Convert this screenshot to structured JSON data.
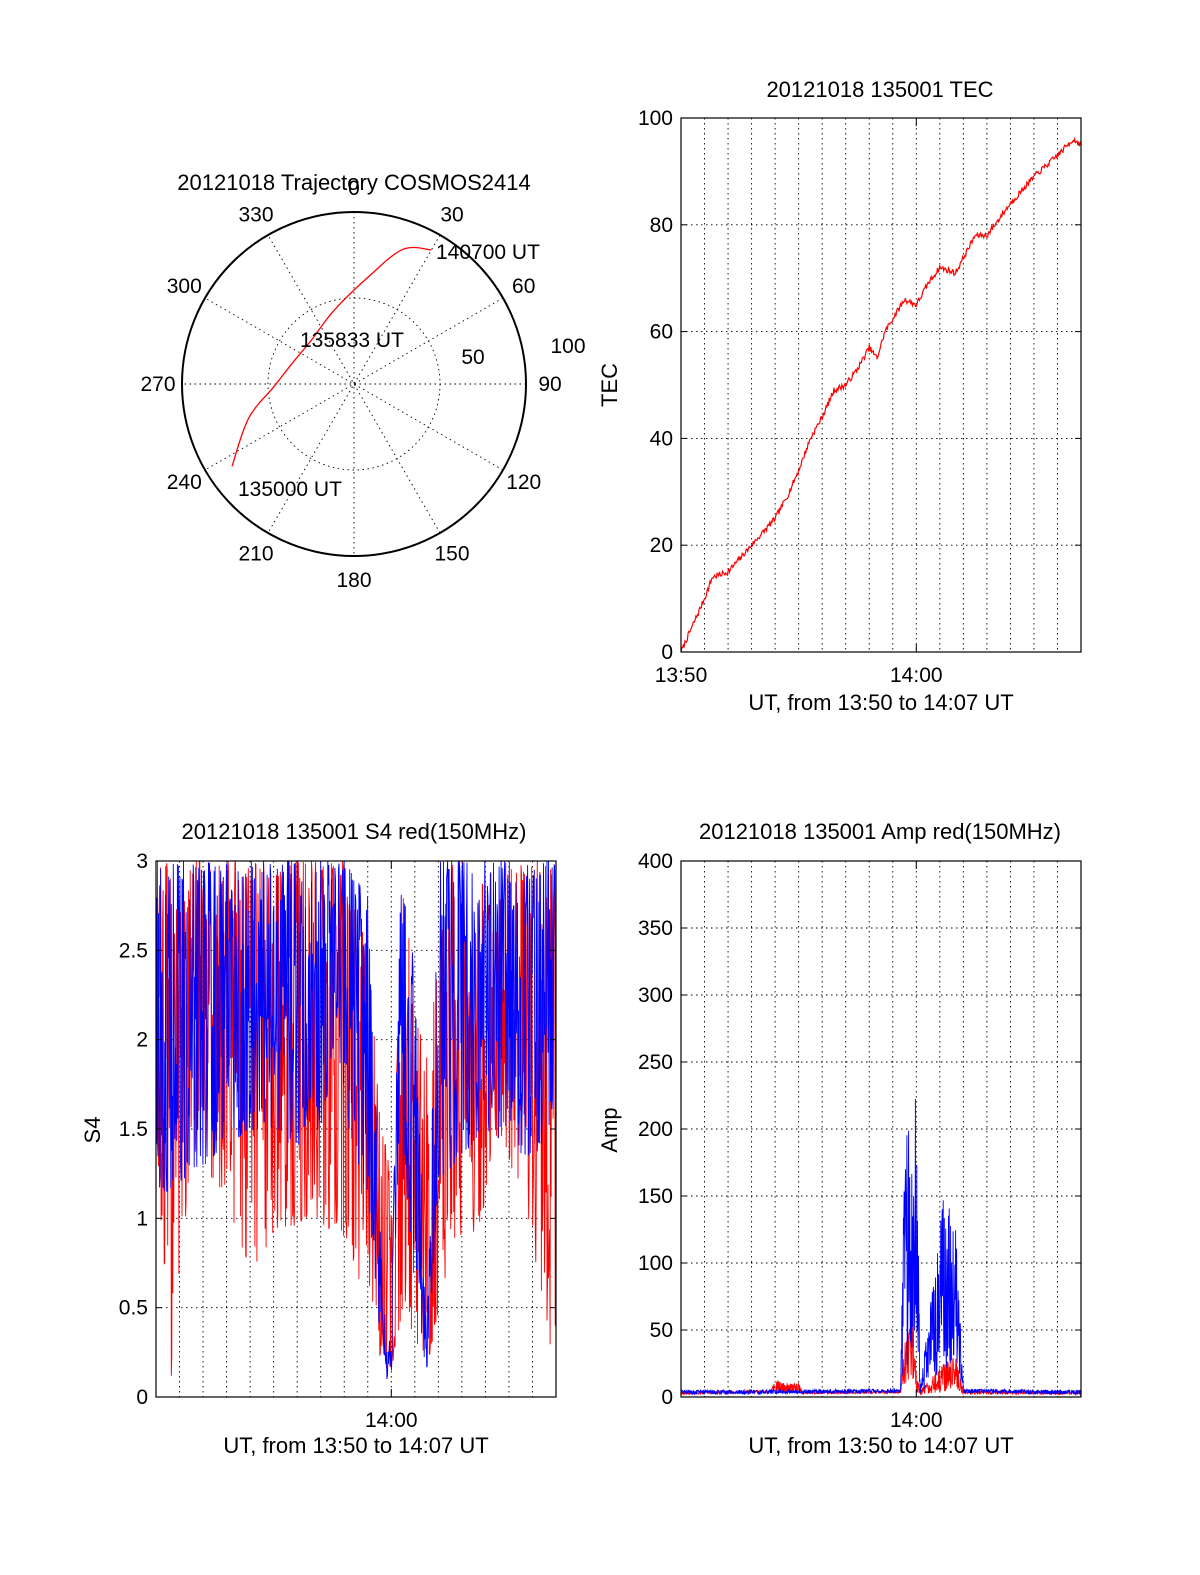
{
  "figure": {
    "background": "#ffffff",
    "series_colors": {
      "red": "#ff0000",
      "blue": "#0000ff"
    }
  },
  "chart_data": [
    {
      "id": "trajectory",
      "type": "polar",
      "title": "20121018 Trajectory COSMOS2414",
      "azimuth_ticks": [
        "0",
        "30",
        "60",
        "90",
        "120",
        "150",
        "180",
        "210",
        "240",
        "270",
        "300",
        "330"
      ],
      "radial_ticks": [
        "50",
        "100"
      ],
      "track": [
        {
          "az": 236,
          "el": 13
        },
        {
          "az": 252,
          "el": 32
        },
        {
          "az": 268,
          "el": 48
        },
        {
          "az": 289,
          "el": 56
        },
        {
          "az": 316,
          "el": 58
        },
        {
          "az": 345,
          "el": 50
        },
        {
          "az": 8,
          "el": 33
        },
        {
          "az": 20,
          "el": 15
        },
        {
          "az": 30,
          "el": 9
        }
      ],
      "annotations": [
        {
          "text": "140700 UT",
          "az": 30,
          "el": 9
        },
        {
          "text": "135833 UT",
          "az": 300,
          "el": 60
        },
        {
          "text": "135000 UT",
          "az": 236,
          "el": 13
        }
      ],
      "color": "#ff0000"
    },
    {
      "id": "tec",
      "type": "line",
      "title": "20121018 135001 TEC",
      "xlabel": "UT, from 13:50 to 14:07 UT",
      "ylabel": "TEC",
      "xlim": [
        "13:50",
        "14:07"
      ],
      "ylim": [
        0,
        100
      ],
      "x_tick_labels": [
        "13:50",
        "14:00"
      ],
      "y_tick_labels": [
        "0",
        "20",
        "40",
        "60",
        "80",
        "100"
      ],
      "grid": true,
      "series": [
        {
          "color": "#ff0000",
          "points": [
            [
              "13:50:00",
              0
            ],
            [
              "13:50:30",
              5
            ],
            [
              "13:51:00",
              10
            ],
            [
              "13:51:20",
              14
            ],
            [
              "13:52:00",
              15
            ],
            [
              "13:53:00",
              20
            ],
            [
              "13:54:00",
              25
            ],
            [
              "13:54:30",
              29
            ],
            [
              "13:55:00",
              34
            ],
            [
              "13:55:30",
              40
            ],
            [
              "13:56:00",
              44
            ],
            [
              "13:56:30",
              49
            ],
            [
              "13:57:00",
              50
            ],
            [
              "13:57:30",
              53
            ],
            [
              "13:58:00",
              57
            ],
            [
              "13:58:20",
              55
            ],
            [
              "13:58:40",
              60
            ],
            [
              "13:59:30",
              66
            ],
            [
              "14:00:00",
              65
            ],
            [
              "14:00:30",
              69
            ],
            [
              "14:01:00",
              72
            ],
            [
              "14:01:40",
              71
            ],
            [
              "14:02:30",
              78
            ],
            [
              "14:03:00",
              78
            ],
            [
              "14:04:00",
              84
            ],
            [
              "14:05:00",
              89
            ],
            [
              "14:06:00",
              93
            ],
            [
              "14:06:40",
              96
            ],
            [
              "14:07:00",
              95
            ]
          ]
        }
      ]
    },
    {
      "id": "s4",
      "type": "line",
      "title": "20121018 135001 S4 red(150MHz)",
      "xlabel": "UT, from 13:50 to 14:07 UT",
      "ylabel": "S4",
      "xlim": [
        "13:50",
        "14:07"
      ],
      "ylim": [
        0,
        3
      ],
      "x_tick_labels": [
        "14:00"
      ],
      "y_tick_labels": [
        "0",
        "0.5",
        "1",
        "1.5",
        "2",
        "2.5",
        "3"
      ],
      "grid": true,
      "series": [
        {
          "color": "#ff0000",
          "envelope": [
            [
              "13:50:00",
              1.4,
              3.0
            ],
            [
              "13:50:40",
              0.0,
              3.0
            ],
            [
              "13:51:30",
              1.4,
              3.0
            ],
            [
              "13:53:00",
              1.1,
              3.0
            ],
            [
              "13:54:00",
              0.7,
              3.0
            ],
            [
              "13:55:00",
              0.9,
              3.0
            ],
            [
              "13:56:30",
              1.0,
              3.0
            ],
            [
              "13:58:00",
              0.9,
              3.0
            ],
            [
              "13:59:00",
              0.5,
              2.5
            ],
            [
              "13:59:40",
              0.15,
              1.5
            ],
            [
              "14:00:00",
              0.15,
              1.2
            ],
            [
              "14:00:30",
              0.5,
              2.8
            ],
            [
              "14:01:30",
              0.15,
              1.9
            ],
            [
              "14:02:30",
              0.8,
              3.0
            ],
            [
              "14:03:30",
              0.8,
              3.0
            ],
            [
              "14:04:30",
              1.4,
              3.0
            ],
            [
              "14:05:30",
              1.2,
              3.0
            ],
            [
              "14:06:30",
              0.5,
              3.0
            ],
            [
              "14:07:00",
              0.0,
              3.0
            ]
          ]
        },
        {
          "color": "#0000ff",
          "envelope": [
            [
              "13:50:00",
              1.1,
              3.0
            ],
            [
              "13:52:00",
              1.3,
              3.0
            ],
            [
              "13:54:00",
              1.5,
              3.0
            ],
            [
              "13:56:00",
              1.4,
              3.0
            ],
            [
              "13:58:00",
              1.6,
              3.0
            ],
            [
              "13:59:00",
              1.1,
              2.8
            ],
            [
              "13:59:40",
              0.1,
              0.5
            ],
            [
              "14:00:00",
              0.1,
              0.3
            ],
            [
              "14:00:20",
              1.4,
              3.0
            ],
            [
              "14:01:00",
              0.7,
              2.4
            ],
            [
              "14:01:30",
              0.1,
              0.3
            ],
            [
              "14:02:00",
              1.2,
              3.0
            ],
            [
              "14:04:00",
              1.5,
              3.0
            ],
            [
              "14:06:00",
              1.3,
              3.0
            ],
            [
              "14:07:00",
              1.6,
              3.0
            ]
          ]
        }
      ]
    },
    {
      "id": "amp",
      "type": "line",
      "title": "20121018 135001 Amp red(150MHz)",
      "xlabel": "UT, from 13:50 to 14:07 UT",
      "ylabel": "Amp",
      "xlim": [
        "13:50",
        "14:07"
      ],
      "ylim": [
        0,
        400
      ],
      "x_tick_labels": [
        "14:00"
      ],
      "y_tick_labels": [
        "0",
        "50",
        "100",
        "150",
        "200",
        "250",
        "300",
        "350",
        "400"
      ],
      "grid": true,
      "series": [
        {
          "color": "#ff0000",
          "envelope": [
            [
              "13:50:00",
              2,
              4
            ],
            [
              "13:53:50",
              3,
              5
            ],
            [
              "13:54:00",
              4,
              12
            ],
            [
              "13:55:00",
              3,
              10
            ],
            [
              "13:55:10",
              2,
              4
            ],
            [
              "13:59:20",
              3,
              5
            ],
            [
              "13:59:30",
              8,
              40
            ],
            [
              "13:59:50",
              15,
              60
            ],
            [
              "14:00:00",
              2,
              20
            ],
            [
              "14:00:10",
              2,
              5
            ],
            [
              "14:01:10",
              4,
              25
            ],
            [
              "14:01:40",
              8,
              30
            ],
            [
              "14:02:00",
              2,
              5
            ],
            [
              "14:07:00",
              2,
              4
            ]
          ]
        },
        {
          "color": "#0000ff",
          "envelope": [
            [
              "13:50:00",
              2,
              5
            ],
            [
              "13:59:20",
              3,
              6
            ],
            [
              "13:59:30",
              20,
              190
            ],
            [
              "13:59:50",
              30,
              210
            ],
            [
              "14:00:00",
              60,
              240
            ],
            [
              "14:00:10",
              3,
              6
            ],
            [
              "14:01:10",
              20,
              150
            ],
            [
              "14:01:40",
              30,
              130
            ],
            [
              "14:02:00",
              3,
              6
            ],
            [
              "14:07:00",
              2,
              5
            ]
          ]
        }
      ]
    }
  ]
}
